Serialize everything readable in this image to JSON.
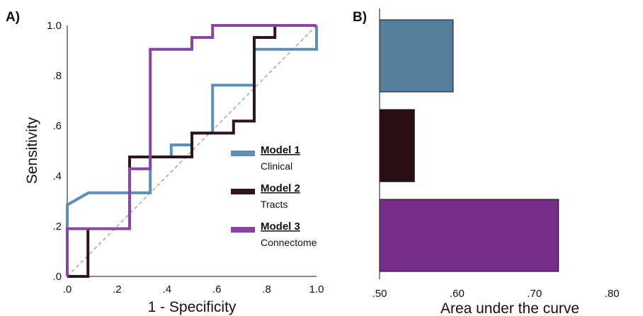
{
  "chart_data": [
    {
      "panel_label": "A)",
      "type": "line",
      "xlabel": "1 - Specificity",
      "ylabel": "Sensitivity",
      "xlim": [
        0,
        1
      ],
      "ylim": [
        0,
        1
      ],
      "x_ticks": [
        ".0",
        ".2",
        ".4",
        ".6",
        ".8",
        "1.0"
      ],
      "y_ticks": [
        ".0",
        ".2",
        ".4",
        ".6",
        ".8",
        "1.0"
      ],
      "grid": false,
      "legend_position": "lower-right",
      "reference_line": {
        "style": "dashed",
        "color": "#999999",
        "from": [
          0,
          0
        ],
        "to": [
          1,
          1
        ]
      },
      "series": [
        {
          "name": "Model 1",
          "subtitle": "Clinical",
          "color": "#5b8fb5",
          "points": [
            [
              0,
              0
            ],
            [
              0,
              0.285
            ],
            [
              0.085,
              0.333
            ],
            [
              0.333,
              0.333
            ],
            [
              0.333,
              0.476
            ],
            [
              0.417,
              0.476
            ],
            [
              0.417,
              0.524
            ],
            [
              0.5,
              0.524
            ],
            [
              0.5,
              0.571
            ],
            [
              0.583,
              0.571
            ],
            [
              0.583,
              0.762
            ],
            [
              0.75,
              0.762
            ],
            [
              0.75,
              0.905
            ],
            [
              1.0,
              0.905
            ],
            [
              1.0,
              1.0
            ]
          ]
        },
        {
          "name": "Model 2",
          "subtitle": "Tracts",
          "color": "#2f1418",
          "points": [
            [
              0,
              0
            ],
            [
              0.083,
              0
            ],
            [
              0.083,
              0.19
            ],
            [
              0.25,
              0.19
            ],
            [
              0.25,
              0.476
            ],
            [
              0.417,
              0.476
            ],
            [
              0.5,
              0.476
            ],
            [
              0.5,
              0.571
            ],
            [
              0.667,
              0.571
            ],
            [
              0.667,
              0.619
            ],
            [
              0.75,
              0.619
            ],
            [
              0.75,
              0.952
            ],
            [
              0.833,
              0.952
            ],
            [
              0.833,
              1.0
            ],
            [
              1.0,
              1.0
            ]
          ]
        },
        {
          "name": "Model 3",
          "subtitle": "Connectome",
          "color": "#8a44a6",
          "points": [
            [
              0,
              0
            ],
            [
              0,
              0.19
            ],
            [
              0.25,
              0.19
            ],
            [
              0.25,
              0.429
            ],
            [
              0.333,
              0.429
            ],
            [
              0.333,
              0.905
            ],
            [
              0.5,
              0.905
            ],
            [
              0.5,
              0.952
            ],
            [
              0.583,
              0.952
            ],
            [
              0.583,
              1.0
            ],
            [
              1.0,
              1.0
            ]
          ]
        }
      ]
    },
    {
      "panel_label": "B)",
      "type": "bar",
      "orientation": "horizontal",
      "xlabel": "Area under the curve",
      "xlim": [
        0.5,
        0.84
      ],
      "x_ticks": [
        0.5,
        0.6,
        0.7,
        0.8
      ],
      "x_tick_labels": [
        ".50",
        ".60",
        ".70",
        ".80"
      ],
      "categories": [
        "Model 1",
        "Model 2",
        "Model 3"
      ],
      "values": [
        0.595,
        0.545,
        0.731
      ],
      "colors": [
        "#567f9e",
        "#2a0f13",
        "#772d8c"
      ]
    }
  ]
}
